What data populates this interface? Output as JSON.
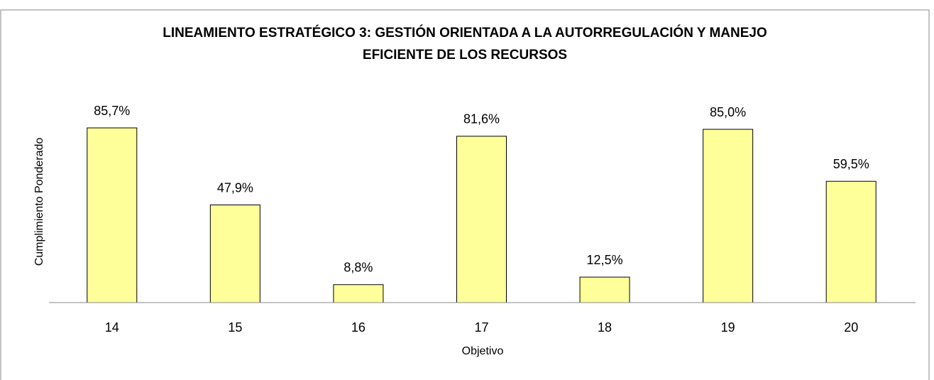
{
  "chart_data": {
    "type": "bar",
    "title": [
      "LINEAMIENTO ESTRATÉGICO 3: GESTIÓN ORIENTADA A LA AUTORREGULACIÓN Y MANEJO",
      "EFICIENTE DE LOS RECURSOS"
    ],
    "x_label": "Objetivo",
    "y_label": "Cumplimiento Ponderado",
    "categories": [
      "14",
      "15",
      "16",
      "17",
      "18",
      "19",
      "20"
    ],
    "values": [
      85.7,
      47.9,
      8.8,
      81.6,
      12.5,
      85.0,
      59.5
    ],
    "value_labels": [
      "85,7%",
      "47,9%",
      "8,8%",
      "81,6%",
      "12,5%",
      "85,0%",
      "59,5%"
    ],
    "color": "#ffff99",
    "ylim": [
      0,
      100
    ]
  }
}
